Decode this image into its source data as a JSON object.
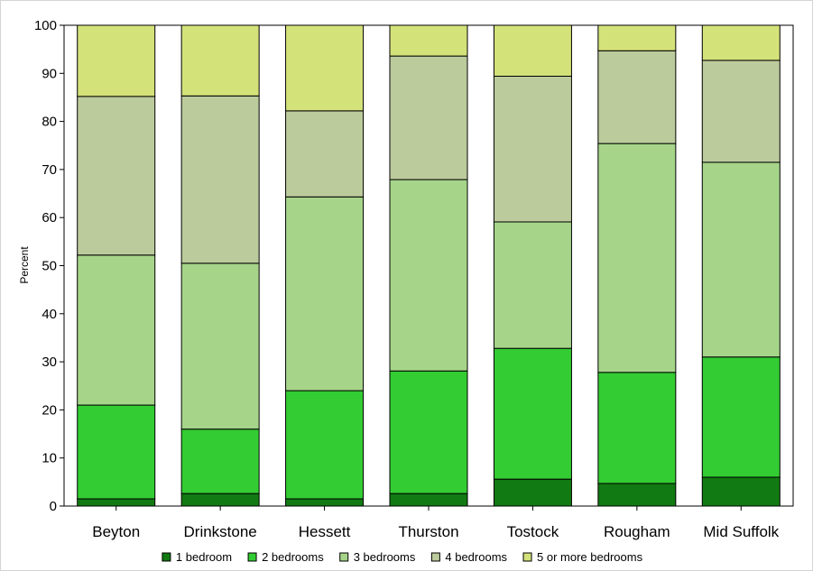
{
  "chart_data": {
    "type": "bar",
    "stacked": true,
    "ylabel": "Percent",
    "xlabel": "",
    "ylim": [
      0,
      100
    ],
    "yticks": [
      0,
      10,
      20,
      30,
      40,
      50,
      60,
      70,
      80,
      90,
      100
    ],
    "grid": false,
    "legend_position": "bottom",
    "categories": [
      "Beyton",
      "Drinkstone",
      "Hessett",
      "Thurston",
      "Tostock",
      "Rougham",
      "Mid Suffolk"
    ],
    "series": [
      {
        "name": "1 bedroom",
        "color": "#127a12",
        "values": [
          1.5,
          2.6,
          1.5,
          2.6,
          5.6,
          4.7,
          6.0
        ]
      },
      {
        "name": "2 bedrooms",
        "color": "#33cc33",
        "values": [
          19.5,
          13.4,
          22.5,
          25.5,
          27.2,
          23.1,
          25.0
        ]
      },
      {
        "name": "3 bedrooms",
        "color": "#a6d58a",
        "values": [
          31.2,
          34.5,
          40.3,
          39.8,
          26.3,
          47.6,
          40.5
        ]
      },
      {
        "name": "4 bedrooms",
        "color": "#bccb9c",
        "values": [
          33.0,
          34.8,
          17.9,
          25.7,
          30.3,
          19.3,
          21.2
        ]
      },
      {
        "name": "5 or more bedrooms",
        "color": "#d4e27a",
        "values": [
          14.8,
          14.7,
          17.8,
          6.4,
          10.6,
          5.3,
          7.3
        ]
      }
    ]
  }
}
